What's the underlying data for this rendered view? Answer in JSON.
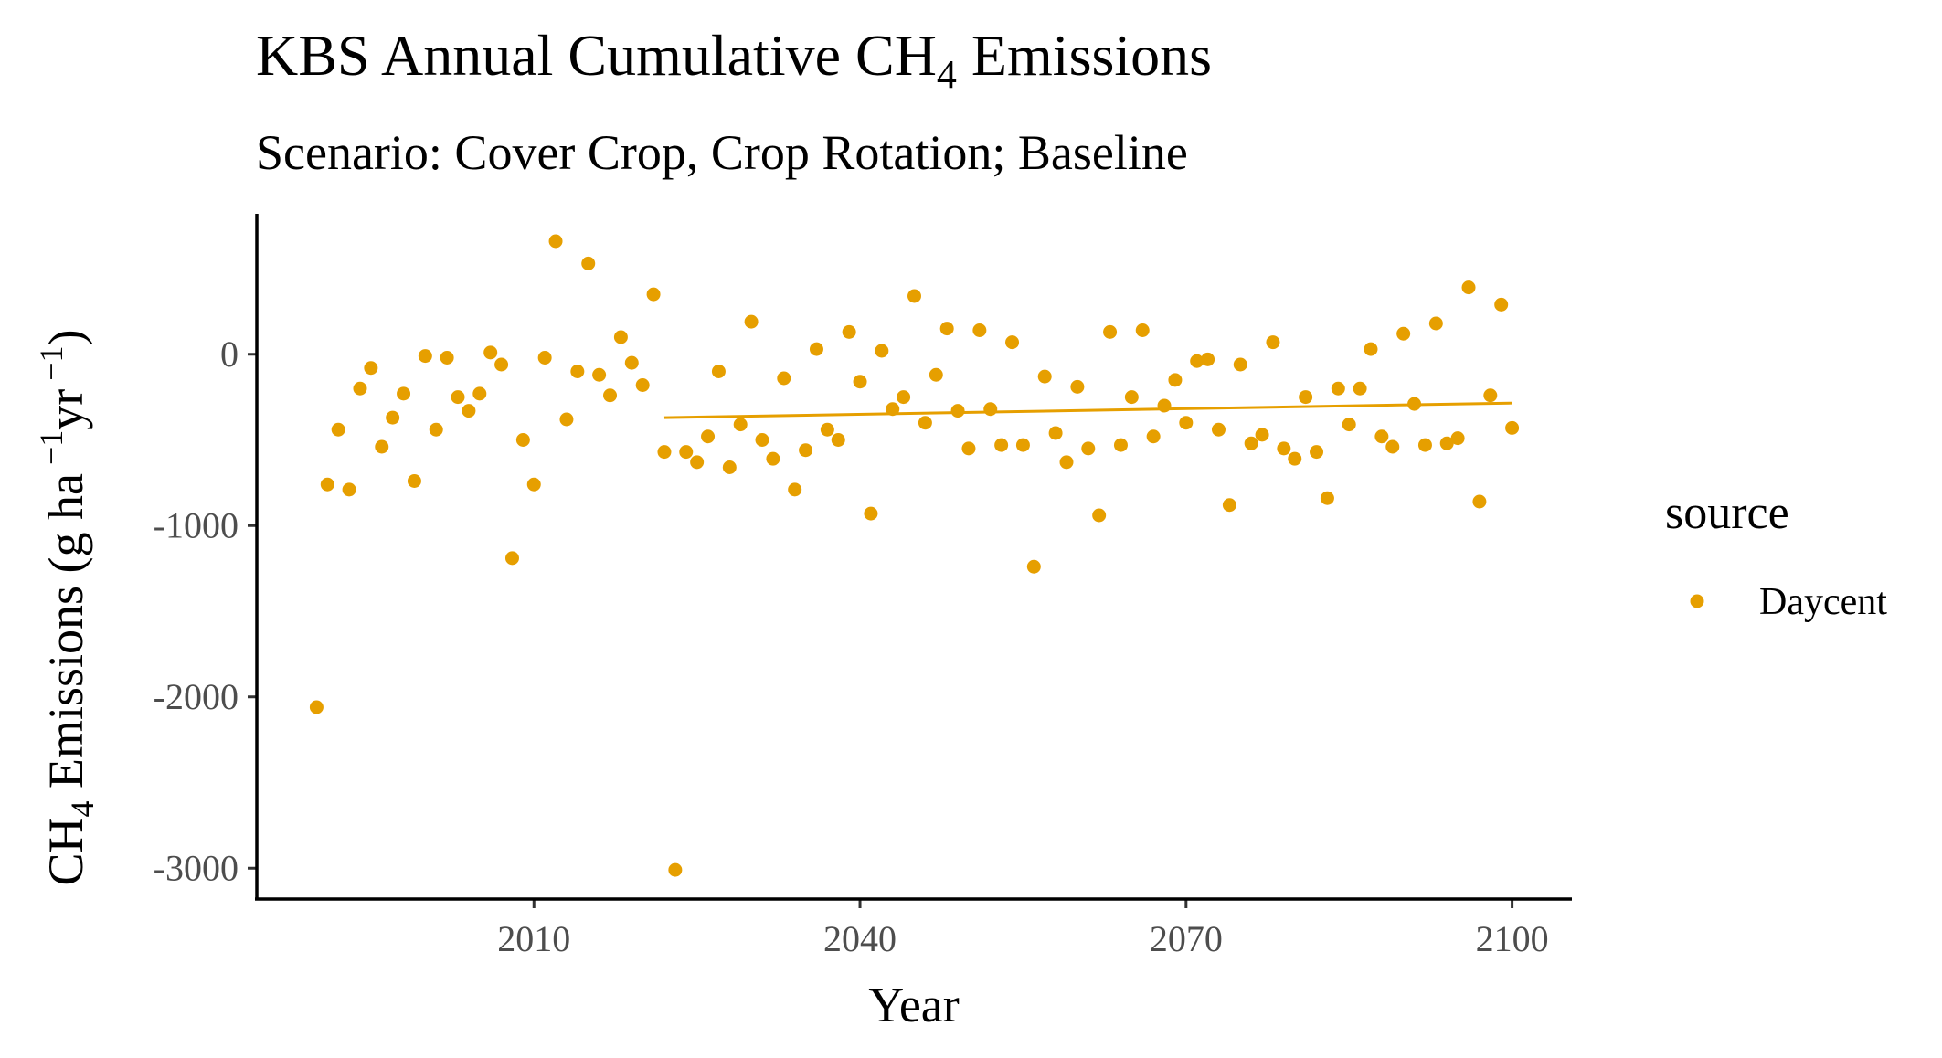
{
  "chart_data": {
    "type": "scatter",
    "title": "KBS Annual Cumulative CH",
    "title_subscript": "4",
    "title_suffix": " Emissions",
    "subtitle": "Scenario: Cover Crop, Crop Rotation; Baseline",
    "xlabel": "Year",
    "ylabel_prefix": "CH",
    "ylabel_sub": "4",
    "ylabel_mid": " Emissions (g ha",
    "ylabel_sup1": " −1",
    "ylabel_mid2": "yr",
    "ylabel_sup2": " −1",
    "ylabel_suffix": ")",
    "xlim": [
      1984.5,
      2105.5
    ],
    "ylim": [
      -3180,
      820
    ],
    "x_ticks": [
      2010,
      2040,
      2070,
      2100
    ],
    "y_ticks": [
      0,
      -1000,
      -2000,
      -3000
    ],
    "grid": false,
    "legend": {
      "title": "source",
      "placement": "right",
      "entries": [
        {
          "label": "Daycent",
          "color": "#E69F00"
        }
      ]
    },
    "series": [
      {
        "name": "Daycent",
        "color": "#E69F00",
        "points": [
          [
            1990,
            -2060
          ],
          [
            1991,
            -760
          ],
          [
            1992,
            -440
          ],
          [
            1993,
            -790
          ],
          [
            1994,
            -200
          ],
          [
            1995,
            -80
          ],
          [
            1996,
            -540
          ],
          [
            1997,
            -370
          ],
          [
            1998,
            -230
          ],
          [
            1999,
            -740
          ],
          [
            2000,
            -10
          ],
          [
            2001,
            -440
          ],
          [
            2002,
            -20
          ],
          [
            2003,
            -250
          ],
          [
            2004,
            -330
          ],
          [
            2005,
            -230
          ],
          [
            2006,
            10
          ],
          [
            2007,
            -60
          ],
          [
            2008,
            -1190
          ],
          [
            2009,
            -500
          ],
          [
            2010,
            -760
          ],
          [
            2011,
            -20
          ],
          [
            2012,
            660
          ],
          [
            2013,
            -380
          ],
          [
            2014,
            -100
          ],
          [
            2015,
            530
          ],
          [
            2016,
            -120
          ],
          [
            2017,
            -240
          ],
          [
            2018,
            100
          ],
          [
            2019,
            -50
          ],
          [
            2020,
            -180
          ],
          [
            2021,
            350
          ],
          [
            2022,
            -570
          ],
          [
            2023,
            -3010
          ],
          [
            2024,
            -570
          ],
          [
            2025,
            -630
          ],
          [
            2026,
            -480
          ],
          [
            2027,
            -100
          ],
          [
            2028,
            -660
          ],
          [
            2029,
            -410
          ],
          [
            2030,
            190
          ],
          [
            2031,
            -500
          ],
          [
            2032,
            -610
          ],
          [
            2033,
            -140
          ],
          [
            2034,
            -790
          ],
          [
            2035,
            -560
          ],
          [
            2036,
            30
          ],
          [
            2037,
            -440
          ],
          [
            2038,
            -500
          ],
          [
            2039,
            130
          ],
          [
            2040,
            -160
          ],
          [
            2041,
            -930
          ],
          [
            2042,
            20
          ],
          [
            2043,
            -320
          ],
          [
            2044,
            -250
          ],
          [
            2045,
            340
          ],
          [
            2046,
            -400
          ],
          [
            2047,
            -120
          ],
          [
            2048,
            150
          ],
          [
            2049,
            -330
          ],
          [
            2050,
            -550
          ],
          [
            2051,
            140
          ],
          [
            2052,
            -320
          ],
          [
            2053,
            -530
          ],
          [
            2054,
            70
          ],
          [
            2055,
            -530
          ],
          [
            2056,
            -1240
          ],
          [
            2057,
            -130
          ],
          [
            2058,
            -460
          ],
          [
            2059,
            -630
          ],
          [
            2060,
            -190
          ],
          [
            2061,
            -550
          ],
          [
            2062,
            -940
          ],
          [
            2063,
            130
          ],
          [
            2064,
            -530
          ],
          [
            2065,
            -250
          ],
          [
            2066,
            140
          ],
          [
            2067,
            -480
          ],
          [
            2068,
            -300
          ],
          [
            2069,
            -150
          ],
          [
            2070,
            -400
          ],
          [
            2071,
            -40
          ],
          [
            2072,
            -30
          ],
          [
            2073,
            -440
          ],
          [
            2074,
            -880
          ],
          [
            2075,
            -60
          ],
          [
            2076,
            -520
          ],
          [
            2077,
            -470
          ],
          [
            2078,
            70
          ],
          [
            2079,
            -550
          ],
          [
            2080,
            -610
          ],
          [
            2081,
            -250
          ],
          [
            2082,
            -570
          ],
          [
            2083,
            -840
          ],
          [
            2084,
            -200
          ],
          [
            2085,
            -410
          ],
          [
            2086,
            -200
          ],
          [
            2087,
            30
          ],
          [
            2088,
            -480
          ],
          [
            2089,
            -540
          ],
          [
            2090,
            120
          ],
          [
            2091,
            -290
          ],
          [
            2092,
            -530
          ],
          [
            2093,
            180
          ],
          [
            2094,
            -520
          ],
          [
            2095,
            -490
          ],
          [
            2096,
            390
          ],
          [
            2097,
            -860
          ],
          [
            2098,
            -240
          ],
          [
            2099,
            290
          ],
          [
            2100,
            -430
          ]
        ]
      }
    ],
    "trend_line": {
      "series": "Daycent",
      "color": "#E69F00",
      "x_start": 2022,
      "y_start": -370,
      "x_end": 2100,
      "y_end": -285
    }
  }
}
